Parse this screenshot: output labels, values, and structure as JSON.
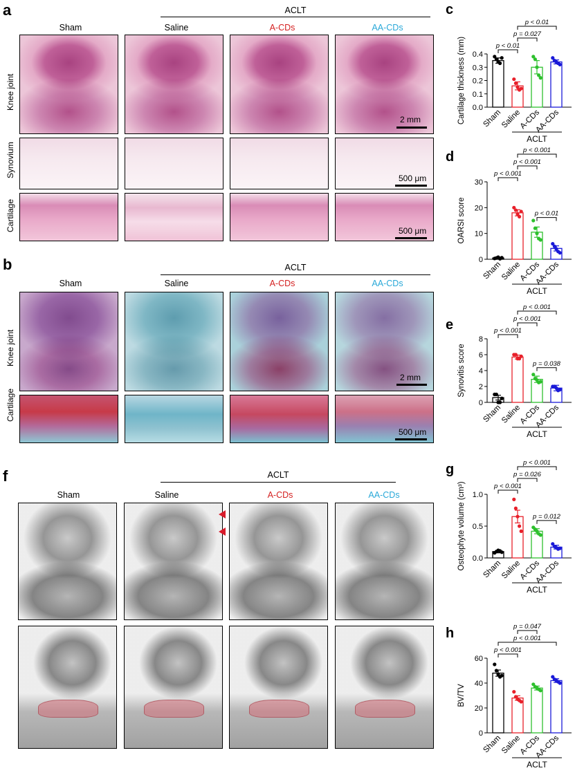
{
  "panels": {
    "a": {
      "letter": "a",
      "aclt": "ACLT",
      "groups": [
        "Sham",
        "Saline",
        "A-CDs",
        "AA-CDs"
      ],
      "rows": [
        "Knee joint",
        "Synovium",
        "Cartilage"
      ],
      "scales": [
        "2 mm",
        "500 μm",
        "500 μm"
      ]
    },
    "b": {
      "letter": "b",
      "aclt": "ACLT",
      "groups": [
        "Sham",
        "Saline",
        "A-CDs",
        "AA-CDs"
      ],
      "rows": [
        "Knee joint",
        "Cartilage"
      ],
      "scales": [
        "2 mm",
        "500 μm"
      ]
    },
    "f": {
      "letter": "f",
      "aclt": "ACLT",
      "groups": [
        "Sham",
        "Saline",
        "A-CDs",
        "AA-CDs"
      ]
    }
  },
  "group_colors": {
    "Sham": "#000000",
    "Saline": "#e8202a",
    "A-CDs": "#2ec02e",
    "AA-CDs": "#1a1ad8"
  },
  "label_colors": {
    "Sham": "#000000",
    "Saline": "#000000",
    "A-CDs": "#d42020",
    "AA-CDs": "#29a8d8"
  },
  "chart_data": [
    {
      "letter": "c",
      "type": "bar",
      "categories": [
        "Sham",
        "Saline",
        "A-CDs",
        "AA-CDs"
      ],
      "values": [
        0.35,
        0.16,
        0.3,
        0.34
      ],
      "errors": [
        0.02,
        0.03,
        0.05,
        0.015
      ],
      "points": [
        [
          0.38,
          0.36,
          0.34,
          0.33,
          0.37
        ],
        [
          0.21,
          0.18,
          0.15,
          0.13,
          0.14
        ],
        [
          0.38,
          0.36,
          0.3,
          0.24,
          0.22
        ],
        [
          0.37,
          0.35,
          0.34,
          0.33,
          0.32
        ]
      ],
      "ylabel": "Cartilage thickness (mm)",
      "ylim": [
        0,
        0.4
      ],
      "yticks": [
        "0.0",
        "0.1",
        "0.2",
        "0.3",
        "0.4"
      ],
      "group_label": "ACLT",
      "pvals": [
        {
          "text": "p < 0.01",
          "from": 0,
          "to": 1
        },
        {
          "text": "p = 0.027",
          "from": 1,
          "to": 2
        },
        {
          "text": "p < 0.01",
          "from": 1,
          "to": 3
        }
      ]
    },
    {
      "letter": "d",
      "type": "bar",
      "categories": [
        "Sham",
        "Saline",
        "A-CDs",
        "AA-CDs"
      ],
      "values": [
        0.5,
        18,
        10.5,
        4.2
      ],
      "errors": [
        0.3,
        1.2,
        2.0,
        1.0
      ],
      "points": [
        [
          0.3,
          0.5,
          0.8,
          0.2,
          0.6
        ],
        [
          20,
          19,
          17.5,
          16.5,
          18.5
        ],
        [
          15,
          12,
          10,
          8,
          7.5
        ],
        [
          6,
          5,
          4,
          3,
          2.5
        ]
      ],
      "ylabel": "OARSI score",
      "ylim": [
        0,
        30
      ],
      "yticks": [
        "0",
        "10",
        "20",
        "30"
      ],
      "group_label": "ACLT",
      "pvals": [
        {
          "text": "p < 0.001",
          "from": 0,
          "to": 1
        },
        {
          "text": "p < 0.001",
          "from": 1,
          "to": 2
        },
        {
          "text": "p < 0.001",
          "from": 1,
          "to": 3
        },
        {
          "text": "p < 0.01",
          "from": 2,
          "to": 3
        }
      ]
    },
    {
      "letter": "e",
      "type": "bar",
      "categories": [
        "Sham",
        "Saline",
        "A-CDs",
        "AA-CDs"
      ],
      "values": [
        0.6,
        5.7,
        2.9,
        1.8
      ],
      "errors": [
        0.3,
        0.25,
        0.4,
        0.35
      ],
      "points": [
        [
          1,
          1,
          0,
          0,
          0.5
        ],
        [
          6,
          6,
          5.5,
          5.5,
          5.8
        ],
        [
          3.5,
          3,
          2.8,
          2.5,
          2.6
        ],
        [
          2,
          2,
          1.8,
          1.5,
          1.6
        ]
      ],
      "ylabel": "Synovitis score",
      "ylim": [
        0,
        8
      ],
      "yticks": [
        "0",
        "2",
        "4",
        "6",
        "8"
      ],
      "group_label": "ACLT",
      "pvals": [
        {
          "text": "p < 0.001",
          "from": 0,
          "to": 1
        },
        {
          "text": "p < 0.001",
          "from": 1,
          "to": 2
        },
        {
          "text": "p < 0.001",
          "from": 1,
          "to": 3
        },
        {
          "text": "p = 0.038",
          "from": 2,
          "to": 3
        }
      ]
    },
    {
      "letter": "g",
      "type": "bar",
      "categories": [
        "Sham",
        "Saline",
        "A-CDs",
        "AA-CDs"
      ],
      "values": [
        0.1,
        0.65,
        0.42,
        0.17
      ],
      "errors": [
        0.02,
        0.1,
        0.04,
        0.03
      ],
      "points": [
        [
          0.08,
          0.1,
          0.12,
          0.11,
          0.09
        ],
        [
          0.92,
          0.78,
          0.65,
          0.5,
          0.42
        ],
        [
          0.48,
          0.45,
          0.42,
          0.38,
          0.36
        ],
        [
          0.22,
          0.18,
          0.16,
          0.14,
          0.15
        ]
      ],
      "ylabel": "Osteophyte volume (cm³)",
      "ylim": [
        0,
        1.0
      ],
      "yticks": [
        "0.0",
        "0.5",
        "1.0"
      ],
      "group_label": "ACLT",
      "pvals": [
        {
          "text": "p < 0.001",
          "from": 0,
          "to": 1
        },
        {
          "text": "p = 0.026",
          "from": 1,
          "to": 2
        },
        {
          "text": "p < 0.001",
          "from": 1,
          "to": 3
        },
        {
          "text": "p = 0.012",
          "from": 2,
          "to": 3
        }
      ]
    },
    {
      "letter": "h",
      "type": "bar",
      "categories": [
        "Sham",
        "Saline",
        "A-CDs",
        "AA-CDs"
      ],
      "values": [
        48,
        28,
        36,
        42
      ],
      "errors": [
        2.5,
        1.8,
        1.6,
        1.5
      ],
      "points": [
        [
          55,
          50,
          47,
          45,
          46
        ],
        [
          33,
          29,
          27,
          26,
          25
        ],
        [
          39,
          37,
          36,
          35,
          34
        ],
        [
          45,
          43,
          42,
          41,
          40
        ]
      ],
      "ylabel": "BV/TV",
      "ylim": [
        0,
        60
      ],
      "yticks": [
        "0",
        "20",
        "40",
        "60"
      ],
      "group_label": "ACLT",
      "pvals": [
        {
          "text": "p < 0.001",
          "from": 0,
          "to": 1
        },
        {
          "text": "p < 0.001",
          "from": 0,
          "to": 3
        },
        {
          "text": "p = 0.047",
          "from": 1,
          "to": 2
        }
      ]
    }
  ]
}
